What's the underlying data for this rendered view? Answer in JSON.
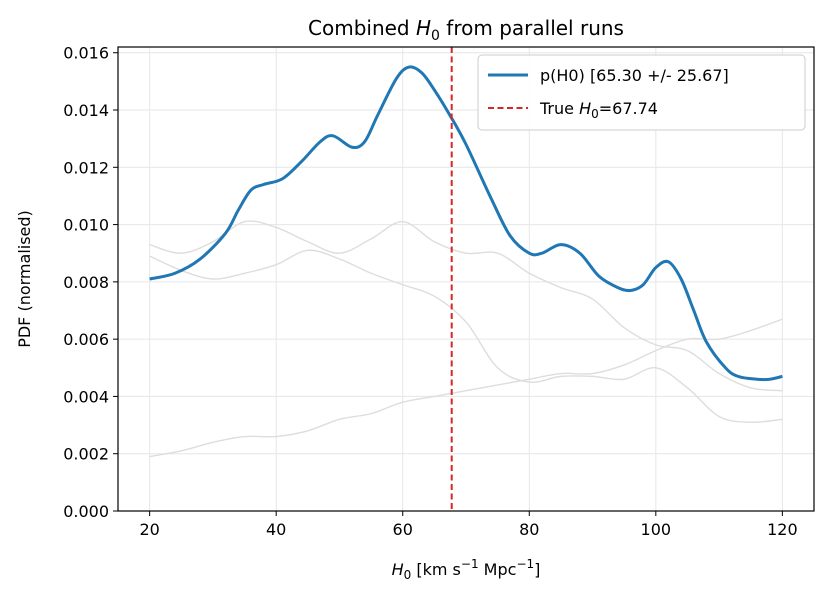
{
  "chart_data": {
    "type": "line",
    "title": "Combined H0 from parallel runs",
    "title_parts": {
      "pre": "Combined ",
      "var": "H",
      "sub": "0",
      "post": " from parallel runs"
    },
    "xlabel": "H0 [km s^-1 Mpc^-1]",
    "xlabel_parts": {
      "var": "H",
      "sub": "0",
      "pre_unit": " [km s",
      "sup1": "−1",
      "mid": " Mpc",
      "sup2": "−1",
      "post": "]"
    },
    "ylabel": "PDF (normalised)",
    "xlim": [
      15,
      125
    ],
    "ylim": [
      0,
      0.0162
    ],
    "xticks": [
      20,
      40,
      60,
      80,
      100,
      120
    ],
    "xtick_labels": [
      "20",
      "40",
      "60",
      "80",
      "100",
      "120"
    ],
    "yticks": [
      0,
      0.002,
      0.004,
      0.006,
      0.008,
      0.01,
      0.012,
      0.014,
      0.016
    ],
    "ytick_labels": [
      "0.000",
      "0.002",
      "0.004",
      "0.006",
      "0.008",
      "0.010",
      "0.012",
      "0.014",
      "0.016"
    ],
    "grid": true,
    "legend_position": "top-right",
    "colors": {
      "combined": "#1f77b4",
      "true_line": "#d62728",
      "runs": "#dddddd"
    },
    "series": [
      {
        "name": "p(H0) [65.30 +/- 25.67]",
        "role": "combined",
        "x": [
          20,
          24,
          28,
          32,
          34,
          36,
          38,
          41,
          44,
          47,
          49,
          52,
          54,
          56,
          59,
          61,
          63,
          65,
          67.5,
          70,
          74,
          77,
          80,
          82,
          85,
          88,
          91,
          94,
          96,
          98,
          100,
          102,
          104,
          106,
          108,
          111,
          113,
          116,
          118,
          120
        ],
        "y": [
          0.0081,
          0.0083,
          0.0088,
          0.0097,
          0.0105,
          0.0112,
          0.0114,
          0.0116,
          0.0122,
          0.0129,
          0.0131,
          0.0127,
          0.0129,
          0.0138,
          0.0151,
          0.0155,
          0.0153,
          0.0147,
          0.0138,
          0.0128,
          0.0109,
          0.0096,
          0.009,
          0.009,
          0.0093,
          0.009,
          0.0082,
          0.0078,
          0.0077,
          0.0079,
          0.0085,
          0.0087,
          0.0081,
          0.007,
          0.0059,
          0.005,
          0.0047,
          0.0046,
          0.0046,
          0.0047
        ]
      },
      {
        "name": "",
        "role": "run",
        "x": [
          20,
          25,
          30,
          35,
          40,
          45,
          50,
          55,
          60,
          65,
          70,
          75,
          80,
          85,
          90,
          95,
          100,
          105,
          110,
          115,
          120
        ],
        "y": [
          0.0093,
          0.009,
          0.0094,
          0.0101,
          0.0099,
          0.0094,
          0.009,
          0.0095,
          0.0101,
          0.0094,
          0.009,
          0.009,
          0.0083,
          0.0078,
          0.0074,
          0.0064,
          0.0058,
          0.0056,
          0.0048,
          0.0043,
          0.0042
        ]
      },
      {
        "name": "",
        "role": "run",
        "x": [
          20,
          25,
          30,
          35,
          40,
          45,
          50,
          55,
          60,
          65,
          70,
          75,
          80,
          85,
          90,
          95,
          100,
          105,
          110,
          115,
          120
        ],
        "y": [
          0.0089,
          0.0084,
          0.0081,
          0.0083,
          0.0086,
          0.0091,
          0.0088,
          0.0083,
          0.0079,
          0.0075,
          0.0066,
          0.005,
          0.0045,
          0.0047,
          0.0047,
          0.0046,
          0.005,
          0.0043,
          0.0033,
          0.0031,
          0.0032
        ]
      },
      {
        "name": "",
        "role": "run",
        "x": [
          20,
          25,
          30,
          35,
          40,
          45,
          50,
          55,
          60,
          65,
          70,
          75,
          80,
          85,
          90,
          95,
          100,
          105,
          110,
          115,
          120
        ],
        "y": [
          0.0019,
          0.0021,
          0.0024,
          0.0026,
          0.0026,
          0.0028,
          0.0032,
          0.0034,
          0.0038,
          0.004,
          0.0042,
          0.0044,
          0.0046,
          0.0048,
          0.0048,
          0.0051,
          0.0056,
          0.006,
          0.006,
          0.0063,
          0.0067
        ]
      }
    ],
    "vline": {
      "x": 67.74,
      "label": "True H0=67.74",
      "label_parts": {
        "pre": "True ",
        "var": "H",
        "sub": "0",
        "post": "=67.74"
      }
    }
  }
}
